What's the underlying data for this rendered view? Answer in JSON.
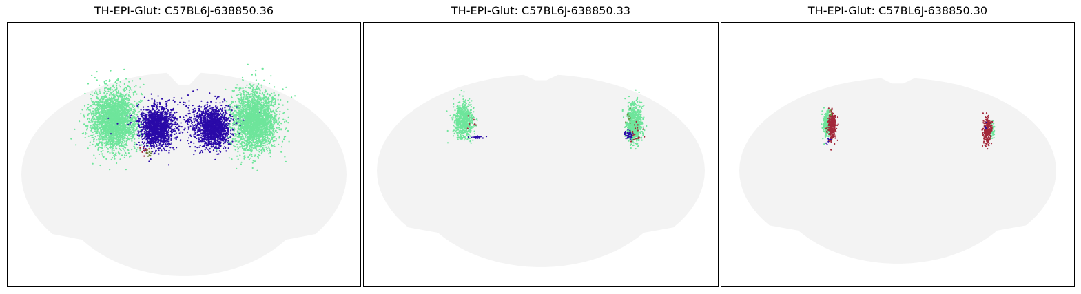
{
  "colors": {
    "tissue": "#f3f3f3",
    "cluster_green": "#6ee59b",
    "cluster_blue": "#2a0aa8",
    "cluster_red": "#a3283a",
    "cluster_olive": "#6b8a3c"
  },
  "chart_data": [
    {
      "type": "scatter",
      "title": "TH-EPI-Glut: C57BL6J-638850.36",
      "grid": false,
      "ticks": false,
      "series": [
        {
          "color": "#6ee59b",
          "regions": [
            [
              -0.44,
              0.06,
              0.14,
              0.18,
              2600
            ],
            [
              0.44,
              0.06,
              0.14,
              0.18,
              2600
            ]
          ]
        },
        {
          "color": "#2a0aa8",
          "regions": [
            [
              -0.17,
              0.02,
              0.1,
              0.12,
              1500
            ],
            [
              0.18,
              0.02,
              0.1,
              0.12,
              1500
            ],
            [
              0.0,
              0.06,
              0.33,
              0.15,
              220
            ]
          ]
        },
        {
          "color": "#a3283a",
          "regions": [
            [
              -0.24,
              -0.12,
              0.04,
              0.03,
              12
            ]
          ]
        },
        {
          "color": "#6b8a3c",
          "regions": [
            [
              -0.22,
              -0.14,
              0.03,
              0.03,
              10
            ]
          ]
        }
      ]
    },
    {
      "type": "scatter",
      "title": "TH-EPI-Glut: C57BL6J-638850.33",
      "grid": false,
      "ticks": false,
      "series": [
        {
          "color": "#6ee59b",
          "regions": [
            [
              -0.48,
              0.06,
              0.06,
              0.1,
              700
            ],
            [
              0.58,
              0.04,
              0.05,
              0.12,
              750
            ]
          ]
        },
        {
          "color": "#2a0aa8",
          "regions": [
            [
              -0.39,
              -0.04,
              0.05,
              0.01,
              30
            ],
            [
              0.55,
              -0.03,
              0.03,
              0.03,
              45
            ]
          ]
        },
        {
          "color": "#a3283a",
          "regions": [
            [
              0.6,
              0.0,
              0.05,
              0.07,
              20
            ],
            [
              -0.44,
              0.05,
              0.03,
              0.05,
              8
            ]
          ]
        },
        {
          "color": "#6b8a3c",
          "regions": [
            [
              0.54,
              0.08,
              0.03,
              0.05,
              10
            ]
          ]
        }
      ]
    },
    {
      "type": "scatter",
      "title": "TH-EPI-Glut: C57BL6J-638850.30",
      "grid": false,
      "ticks": false,
      "series": [
        {
          "color": "#6ee59b",
          "regions": [
            [
              -0.44,
              0.04,
              0.025,
              0.07,
              280
            ],
            [
              0.59,
              0.0,
              0.012,
              0.05,
              50
            ]
          ]
        },
        {
          "color": "#a3283a",
          "regions": [
            [
              -0.41,
              0.03,
              0.025,
              0.09,
              320
            ],
            [
              0.56,
              0.0,
              0.025,
              0.08,
              280
            ]
          ]
        },
        {
          "color": "#2a0aa8",
          "regions": [
            [
              -0.44,
              -0.07,
              0.02,
              0.02,
              6
            ],
            [
              0.55,
              0.03,
              0.01,
              0.02,
              4
            ]
          ]
        },
        {
          "color": "#6b8a3c",
          "regions": [
            [
              -0.42,
              0.1,
              0.01,
              0.02,
              5
            ]
          ]
        }
      ]
    }
  ]
}
